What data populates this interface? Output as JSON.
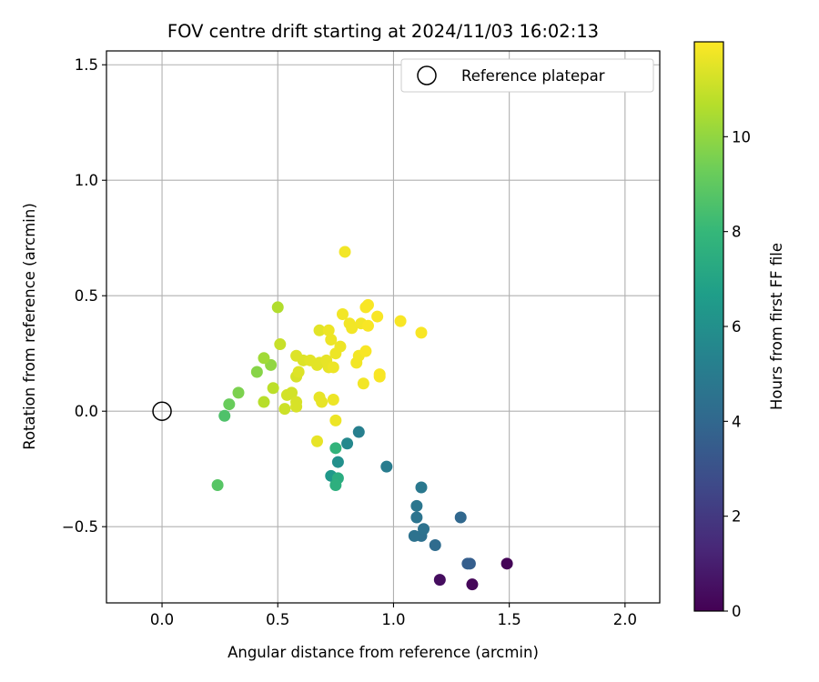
{
  "chart_data": {
    "type": "scatter",
    "title": "FOV centre drift starting at 2024/11/03 16:02:13",
    "xlabel": "Angular distance from reference (arcmin)",
    "ylabel": "Rotation from reference (arcmin)",
    "xlim": [
      -0.24,
      2.15
    ],
    "ylim": [
      -0.83,
      1.56
    ],
    "xticks": [
      0.0,
      0.5,
      1.0,
      1.5,
      2.0
    ],
    "xtick_labels": [
      "0.0",
      "0.5",
      "1.0",
      "1.5",
      "2.0"
    ],
    "yticks": [
      -0.5,
      0.0,
      0.5,
      1.0,
      1.5
    ],
    "ytick_labels": [
      "−0.5",
      "0.0",
      "0.5",
      "1.0",
      "1.5"
    ],
    "grid": true,
    "legend": {
      "placement": "top-right",
      "entries": [
        {
          "label": "Reference platepar",
          "marker": "open-circle",
          "color": "#000000"
        }
      ]
    },
    "reference_point": {
      "x": 0.0,
      "y": 0.0
    },
    "colorbar": {
      "label": "Hours from first FF file",
      "min": 0,
      "max": 12,
      "ticks": [
        0,
        2,
        4,
        6,
        8,
        10
      ],
      "tick_labels": [
        "0",
        "2",
        "4",
        "6",
        "8",
        "10"
      ],
      "colormap": "viridis",
      "colormap_stops": [
        "#440154",
        "#482878",
        "#3e4a89",
        "#31688e",
        "#26828e",
        "#1f9e89",
        "#35b779",
        "#6ece58",
        "#b5de2b",
        "#fde725"
      ]
    },
    "series": [
      {
        "color_by": "hours",
        "points": [
          {
            "x": 1.49,
            "y": -0.66,
            "c": 0.1
          },
          {
            "x": 1.34,
            "y": -0.75,
            "c": 0.2
          },
          {
            "x": 1.2,
            "y": -0.73,
            "c": 0.4
          },
          {
            "x": 1.33,
            "y": -0.66,
            "c": 3.6
          },
          {
            "x": 1.32,
            "y": -0.66,
            "c": 3.6
          },
          {
            "x": 1.29,
            "y": -0.46,
            "c": 4.0
          },
          {
            "x": 1.18,
            "y": -0.58,
            "c": 4.2
          },
          {
            "x": 1.12,
            "y": -0.54,
            "c": 4.4
          },
          {
            "x": 1.09,
            "y": -0.54,
            "c": 4.5
          },
          {
            "x": 1.13,
            "y": -0.51,
            "c": 4.5
          },
          {
            "x": 1.1,
            "y": -0.46,
            "c": 4.6
          },
          {
            "x": 1.1,
            "y": -0.41,
            "c": 4.7
          },
          {
            "x": 1.12,
            "y": -0.33,
            "c": 4.8
          },
          {
            "x": 0.97,
            "y": -0.24,
            "c": 5.0
          },
          {
            "x": 0.85,
            "y": -0.09,
            "c": 5.2
          },
          {
            "x": 0.8,
            "y": -0.14,
            "c": 5.6
          },
          {
            "x": 0.76,
            "y": -0.22,
            "c": 6.0
          },
          {
            "x": 0.73,
            "y": -0.28,
            "c": 6.4
          },
          {
            "x": 0.76,
            "y": -0.29,
            "c": 7.4
          },
          {
            "x": 0.75,
            "y": -0.32,
            "c": 7.6
          },
          {
            "x": 0.75,
            "y": -0.16,
            "c": 7.8
          },
          {
            "x": 0.27,
            "y": -0.02,
            "c": 8.6
          },
          {
            "x": 0.24,
            "y": -0.32,
            "c": 8.8
          },
          {
            "x": 0.29,
            "y": 0.03,
            "c": 9.2
          },
          {
            "x": 0.33,
            "y": 0.08,
            "c": 9.6
          },
          {
            "x": 0.41,
            "y": 0.17,
            "c": 9.8
          },
          {
            "x": 0.47,
            "y": 0.2,
            "c": 10.0
          },
          {
            "x": 0.44,
            "y": 0.23,
            "c": 10.3
          },
          {
            "x": 0.5,
            "y": 0.45,
            "c": 10.6
          },
          {
            "x": 0.44,
            "y": 0.04,
            "c": 10.7
          },
          {
            "x": 0.48,
            "y": 0.1,
            "c": 10.8
          },
          {
            "x": 0.51,
            "y": 0.29,
            "c": 11.0
          },
          {
            "x": 0.53,
            "y": 0.01,
            "c": 11.1
          },
          {
            "x": 0.54,
            "y": 0.07,
            "c": 11.2
          },
          {
            "x": 0.56,
            "y": 0.08,
            "c": 11.2
          },
          {
            "x": 0.58,
            "y": 0.04,
            "c": 11.3
          },
          {
            "x": 0.58,
            "y": 0.02,
            "c": 11.3
          },
          {
            "x": 0.58,
            "y": 0.15,
            "c": 11.3
          },
          {
            "x": 0.59,
            "y": 0.17,
            "c": 11.4
          },
          {
            "x": 0.58,
            "y": 0.24,
            "c": 11.4
          },
          {
            "x": 0.61,
            "y": 0.22,
            "c": 11.4
          },
          {
            "x": 0.64,
            "y": 0.22,
            "c": 11.5
          },
          {
            "x": 0.67,
            "y": 0.2,
            "c": 11.5
          },
          {
            "x": 0.68,
            "y": 0.21,
            "c": 11.5
          },
          {
            "x": 0.68,
            "y": 0.35,
            "c": 11.5
          },
          {
            "x": 0.68,
            "y": 0.06,
            "c": 11.6
          },
          {
            "x": 0.69,
            "y": 0.04,
            "c": 11.6
          },
          {
            "x": 0.67,
            "y": -0.13,
            "c": 11.6
          },
          {
            "x": 0.71,
            "y": 0.22,
            "c": 11.6
          },
          {
            "x": 0.72,
            "y": 0.19,
            "c": 11.6
          },
          {
            "x": 0.72,
            "y": 0.35,
            "c": 11.7
          },
          {
            "x": 0.73,
            "y": 0.31,
            "c": 11.7
          },
          {
            "x": 0.74,
            "y": 0.05,
            "c": 11.7
          },
          {
            "x": 0.75,
            "y": -0.04,
            "c": 11.7
          },
          {
            "x": 0.74,
            "y": 0.19,
            "c": 11.7
          },
          {
            "x": 0.75,
            "y": 0.25,
            "c": 11.7
          },
          {
            "x": 0.77,
            "y": 0.28,
            "c": 11.7
          },
          {
            "x": 0.78,
            "y": 0.42,
            "c": 11.8
          },
          {
            "x": 0.79,
            "y": 0.69,
            "c": 11.8
          },
          {
            "x": 0.81,
            "y": 0.38,
            "c": 11.8
          },
          {
            "x": 0.82,
            "y": 0.36,
            "c": 11.8
          },
          {
            "x": 0.84,
            "y": 0.21,
            "c": 11.8
          },
          {
            "x": 0.85,
            "y": 0.24,
            "c": 11.8
          },
          {
            "x": 0.86,
            "y": 0.38,
            "c": 11.8
          },
          {
            "x": 0.87,
            "y": 0.12,
            "c": 11.8
          },
          {
            "x": 0.88,
            "y": 0.26,
            "c": 11.9
          },
          {
            "x": 0.88,
            "y": 0.45,
            "c": 11.9
          },
          {
            "x": 0.89,
            "y": 0.46,
            "c": 11.9
          },
          {
            "x": 0.89,
            "y": 0.37,
            "c": 11.9
          },
          {
            "x": 0.93,
            "y": 0.41,
            "c": 11.9
          },
          {
            "x": 0.94,
            "y": 0.15,
            "c": 11.9
          },
          {
            "x": 0.94,
            "y": 0.16,
            "c": 11.9
          },
          {
            "x": 1.03,
            "y": 0.39,
            "c": 11.9
          },
          {
            "x": 1.12,
            "y": 0.34,
            "c": 11.9
          }
        ]
      }
    ]
  }
}
